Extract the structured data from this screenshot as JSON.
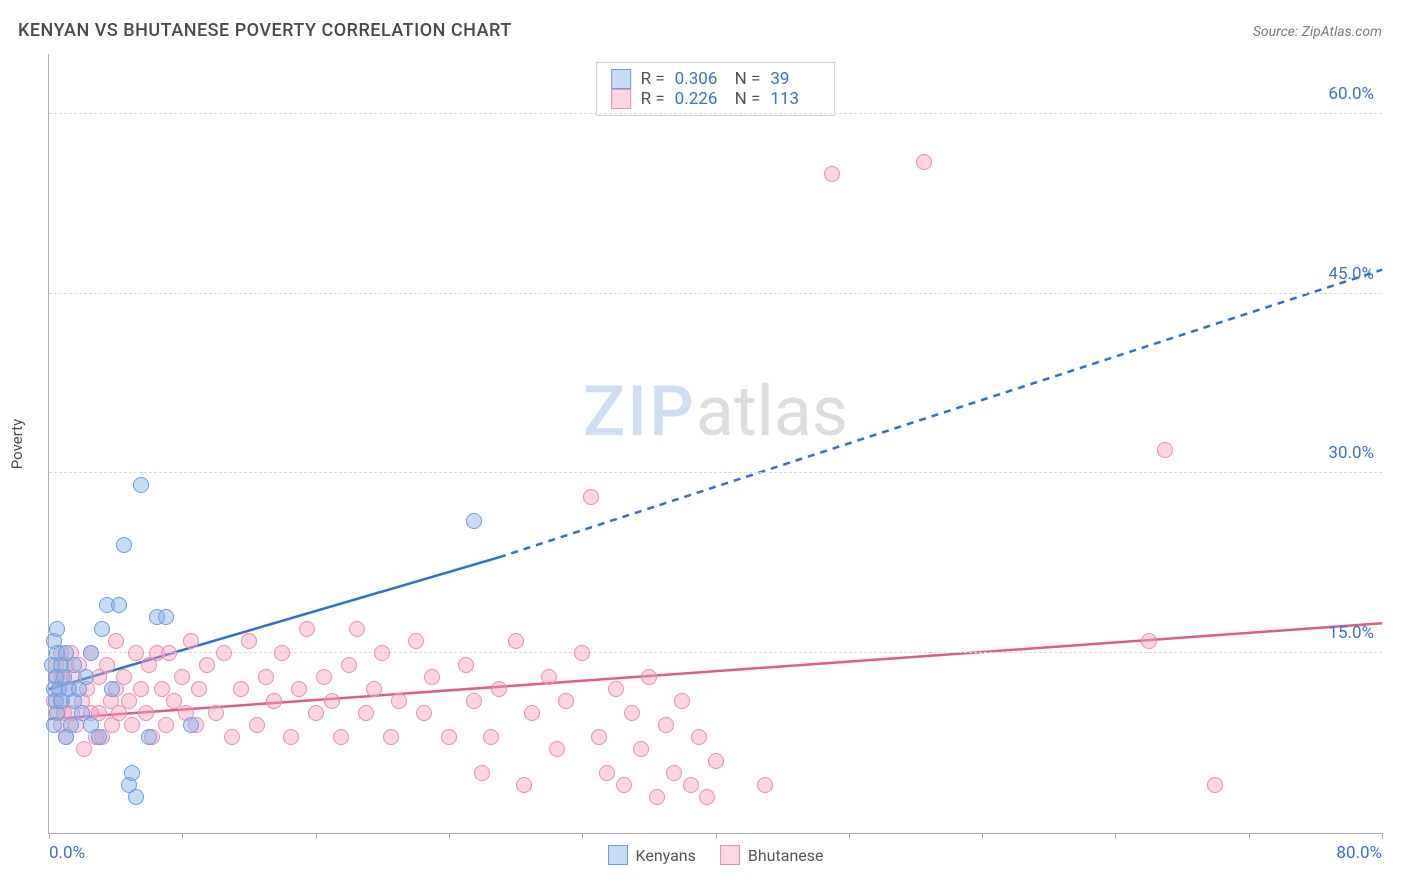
{
  "title": "KENYAN VS BHUTANESE POVERTY CORRELATION CHART",
  "source": "Source: ZipAtlas.com",
  "ylabel": "Poverty",
  "watermark_a": "ZIP",
  "watermark_b": "atlas",
  "axes": {
    "xmin": 0,
    "xmax": 80,
    "ymin": 0,
    "ymax": 65,
    "xlabel_start": "0.0%",
    "xlabel_end": "80.0%",
    "yticks": [
      15,
      30,
      45,
      60
    ],
    "ytick_labels": [
      "15.0%",
      "30.0%",
      "45.0%",
      "60.0%"
    ],
    "xtick_positions": [
      0,
      8,
      16,
      24,
      32,
      40,
      48,
      56,
      64,
      72,
      80
    ]
  },
  "colors": {
    "series_a_fill": "rgba(130,175,235,0.45)",
    "series_a_stroke": "#6aa0e0",
    "series_b_fill": "rgba(248,160,190,0.45)",
    "series_b_stroke": "#eb8fb0",
    "trend_a": "#2f6fd0",
    "trend_b": "#e05a8a",
    "label_blue": "#3a6fd8",
    "grid": "#dcdcdc",
    "axis": "#b0b0b0"
  },
  "marker_radius": 8,
  "legend_top": {
    "rows": [
      {
        "swatch": "a",
        "r_label": "R =",
        "r": "0.306",
        "n_label": "N =",
        "n": "39"
      },
      {
        "swatch": "b",
        "r_label": "R =",
        "r": "0.226",
        "n_label": "N =",
        "n": "113"
      }
    ]
  },
  "legend_bottom": {
    "items": [
      {
        "swatch": "a",
        "label": "Kenyans"
      },
      {
        "swatch": "b",
        "label": "Bhutanese"
      }
    ]
  },
  "trend_lines": {
    "a": {
      "solid": [
        [
          0,
          12
        ],
        [
          27,
          23
        ]
      ],
      "dashed": [
        [
          27,
          23
        ],
        [
          80,
          47
        ]
      ]
    },
    "b": {
      "solid": [
        [
          0,
          9.5
        ],
        [
          80,
          17.5
        ]
      ]
    }
  },
  "series_a": [
    [
      0.2,
      14
    ],
    [
      0.3,
      12
    ],
    [
      0.3,
      16
    ],
    [
      0.4,
      11
    ],
    [
      0.4,
      13
    ],
    [
      0.5,
      15
    ],
    [
      0.5,
      17
    ],
    [
      0.5,
      10
    ],
    [
      0.3,
      9
    ],
    [
      0.6,
      12
    ],
    [
      0.7,
      14
    ],
    [
      0.7,
      11
    ],
    [
      0.9,
      13
    ],
    [
      1.0,
      15
    ],
    [
      1.0,
      8
    ],
    [
      1.2,
      12
    ],
    [
      1.3,
      9
    ],
    [
      1.5,
      14
    ],
    [
      1.5,
      11
    ],
    [
      1.8,
      12
    ],
    [
      2.0,
      10
    ],
    [
      2.2,
      13
    ],
    [
      2.5,
      9
    ],
    [
      2.5,
      15
    ],
    [
      3.0,
      8
    ],
    [
      3.2,
      17
    ],
    [
      3.5,
      19
    ],
    [
      3.8,
      12
    ],
    [
      4.2,
      19
    ],
    [
      4.5,
      24
    ],
    [
      4.8,
      4
    ],
    [
      5.0,
      5
    ],
    [
      5.2,
      3
    ],
    [
      5.5,
      29
    ],
    [
      6.0,
      8
    ],
    [
      6.5,
      18
    ],
    [
      7.0,
      18
    ],
    [
      8.5,
      9
    ],
    [
      25.5,
      26
    ]
  ],
  "series_b": [
    [
      0.3,
      11
    ],
    [
      0.4,
      14
    ],
    [
      0.5,
      10
    ],
    [
      0.5,
      13
    ],
    [
      0.6,
      12
    ],
    [
      0.7,
      15
    ],
    [
      0.7,
      9
    ],
    [
      0.8,
      11
    ],
    [
      0.8,
      13
    ],
    [
      0.9,
      10
    ],
    [
      1.0,
      14
    ],
    [
      1.0,
      8
    ],
    [
      1.2,
      12
    ],
    [
      1.3,
      15
    ],
    [
      1.4,
      10
    ],
    [
      1.5,
      13
    ],
    [
      1.6,
      9
    ],
    [
      1.8,
      14
    ],
    [
      2.0,
      11
    ],
    [
      2.1,
      7
    ],
    [
      2.3,
      12
    ],
    [
      2.5,
      15
    ],
    [
      2.5,
      10
    ],
    [
      2.8,
      8
    ],
    [
      3.0,
      13
    ],
    [
      3.0,
      10
    ],
    [
      3.2,
      8
    ],
    [
      3.5,
      14
    ],
    [
      3.7,
      11
    ],
    [
      3.8,
      9
    ],
    [
      4.0,
      16
    ],
    [
      4.0,
      12
    ],
    [
      4.2,
      10
    ],
    [
      4.5,
      13
    ],
    [
      4.8,
      11
    ],
    [
      5.0,
      9
    ],
    [
      5.2,
      15
    ],
    [
      5.5,
      12
    ],
    [
      5.8,
      10
    ],
    [
      6.0,
      14
    ],
    [
      6.2,
      8
    ],
    [
      6.5,
      15
    ],
    [
      6.8,
      12
    ],
    [
      7.0,
      9
    ],
    [
      7.2,
      15
    ],
    [
      7.5,
      11
    ],
    [
      8.0,
      13
    ],
    [
      8.2,
      10
    ],
    [
      8.5,
      16
    ],
    [
      8.8,
      9
    ],
    [
      9.0,
      12
    ],
    [
      9.5,
      14
    ],
    [
      10.0,
      10
    ],
    [
      10.5,
      15
    ],
    [
      11.0,
      8
    ],
    [
      11.5,
      12
    ],
    [
      12.0,
      16
    ],
    [
      12.5,
      9
    ],
    [
      13.0,
      13
    ],
    [
      13.5,
      11
    ],
    [
      14.0,
      15
    ],
    [
      14.5,
      8
    ],
    [
      15.0,
      12
    ],
    [
      15.5,
      17
    ],
    [
      16.0,
      10
    ],
    [
      16.5,
      13
    ],
    [
      17.0,
      11
    ],
    [
      17.5,
      8
    ],
    [
      18.0,
      14
    ],
    [
      18.5,
      17
    ],
    [
      19.0,
      10
    ],
    [
      19.5,
      12
    ],
    [
      20.0,
      15
    ],
    [
      20.5,
      8
    ],
    [
      21.0,
      11
    ],
    [
      22.0,
      16
    ],
    [
      22.5,
      10
    ],
    [
      23.0,
      13
    ],
    [
      24.0,
      8
    ],
    [
      25.0,
      14
    ],
    [
      25.5,
      11
    ],
    [
      26.0,
      5
    ],
    [
      26.5,
      8
    ],
    [
      27.0,
      12
    ],
    [
      28.0,
      16
    ],
    [
      28.5,
      4
    ],
    [
      29.0,
      10
    ],
    [
      30.0,
      13
    ],
    [
      30.5,
      7
    ],
    [
      31.0,
      11
    ],
    [
      32.0,
      15
    ],
    [
      32.5,
      28
    ],
    [
      33.0,
      8
    ],
    [
      33.5,
      5
    ],
    [
      34.0,
      12
    ],
    [
      34.5,
      4
    ],
    [
      35.0,
      10
    ],
    [
      35.5,
      7
    ],
    [
      36.0,
      13
    ],
    [
      36.5,
      3
    ],
    [
      37.0,
      9
    ],
    [
      37.5,
      5
    ],
    [
      38.0,
      11
    ],
    [
      38.5,
      4
    ],
    [
      39.0,
      8
    ],
    [
      39.5,
      3
    ],
    [
      40.0,
      6
    ],
    [
      43.0,
      4
    ],
    [
      47.0,
      55
    ],
    [
      52.5,
      56
    ],
    [
      66.0,
      16
    ],
    [
      67.0,
      32
    ],
    [
      70.0,
      4
    ]
  ]
}
